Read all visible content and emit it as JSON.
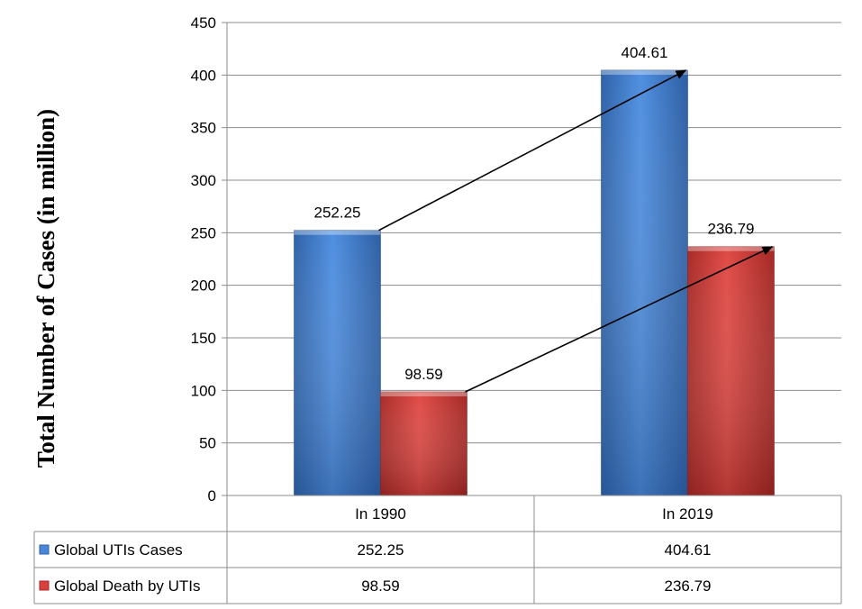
{
  "chart_data": {
    "type": "bar",
    "categories": [
      "In 1990",
      "In 2019"
    ],
    "series": [
      {
        "name": "Global UTIs Cases",
        "values": [
          252.25,
          404.61
        ],
        "color": "#4a86d8"
      },
      {
        "name": "Global Death by UTIs",
        "values": [
          98.59,
          236.79
        ],
        "color": "#d9413e"
      }
    ],
    "data_labels": [
      [
        "252.25",
        "404.61"
      ],
      [
        "98.59",
        "236.79"
      ]
    ],
    "table_values": [
      [
        "252.25",
        "404.61"
      ],
      [
        "98.59",
        "236.79"
      ]
    ],
    "yticks": [
      "0",
      "50",
      "100",
      "150",
      "200",
      "250",
      "300",
      "350",
      "400",
      "450"
    ],
    "ylabel": "Total Number of Cases (in million)",
    "xlabel": "",
    "ylim": [
      0,
      450
    ],
    "grid": true,
    "legend": "data-table-left",
    "arrows": [
      {
        "series": 0,
        "from_category": 0,
        "to_category": 1
      },
      {
        "series": 1,
        "from_category": 0,
        "to_category": 1
      }
    ]
  }
}
